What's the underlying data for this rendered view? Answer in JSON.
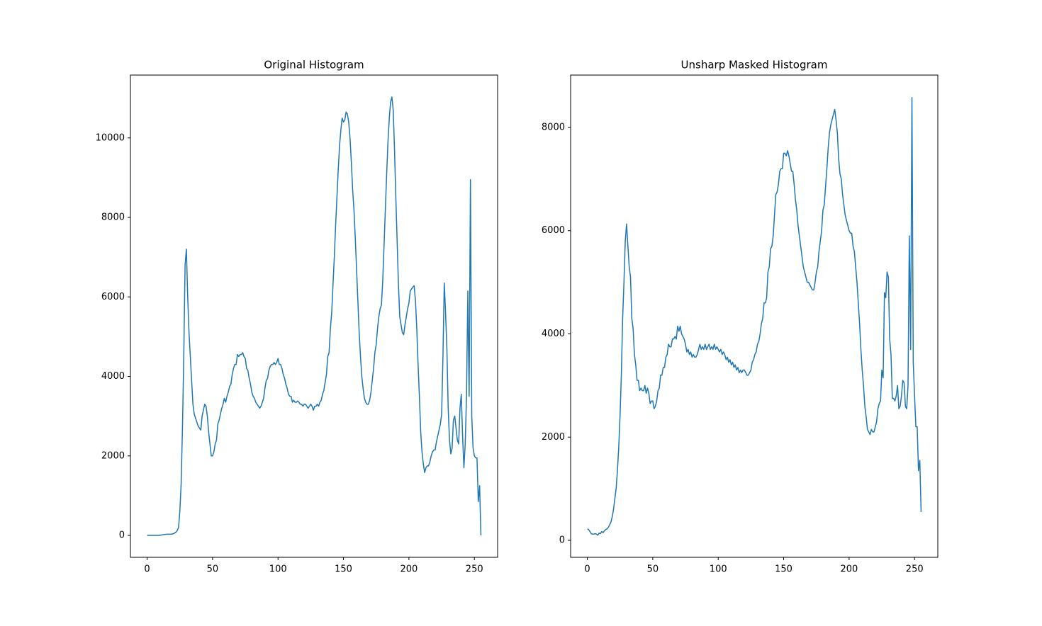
{
  "chart_data": [
    {
      "type": "line",
      "title": "Original Histogram",
      "color": "#1f77b4",
      "xlim": [
        -12.75,
        267.75
      ],
      "ylim": [
        -551.5,
        11581.5
      ],
      "xticks": [
        0,
        50,
        100,
        150,
        200,
        250
      ],
      "yticks": [
        0,
        2000,
        4000,
        6000,
        8000,
        10000
      ],
      "x": [
        0,
        1,
        2,
        3,
        4,
        5,
        6,
        7,
        8,
        9,
        10,
        11,
        12,
        13,
        14,
        15,
        16,
        17,
        18,
        19,
        20,
        21,
        22,
        23,
        24,
        25,
        26,
        27,
        28,
        29,
        30,
        31,
        32,
        33,
        34,
        35,
        36,
        37,
        38,
        39,
        40,
        41,
        42,
        43,
        44,
        45,
        46,
        47,
        48,
        49,
        50,
        51,
        52,
        53,
        54,
        55,
        56,
        57,
        58,
        59,
        60,
        61,
        62,
        63,
        64,
        65,
        66,
        67,
        68,
        69,
        70,
        71,
        72,
        73,
        74,
        75,
        76,
        77,
        78,
        79,
        80,
        81,
        82,
        83,
        84,
        85,
        86,
        87,
        88,
        89,
        90,
        91,
        92,
        93,
        94,
        95,
        96,
        97,
        98,
        99,
        100,
        101,
        102,
        103,
        104,
        105,
        106,
        107,
        108,
        109,
        110,
        111,
        112,
        113,
        114,
        115,
        116,
        117,
        118,
        119,
        120,
        121,
        122,
        123,
        124,
        125,
        126,
        127,
        128,
        129,
        130,
        131,
        132,
        133,
        134,
        135,
        136,
        137,
        138,
        139,
        140,
        141,
        142,
        143,
        144,
        145,
        146,
        147,
        148,
        149,
        150,
        151,
        152,
        153,
        154,
        155,
        156,
        157,
        158,
        159,
        160,
        161,
        162,
        163,
        164,
        165,
        166,
        167,
        168,
        169,
        170,
        171,
        172,
        173,
        174,
        175,
        176,
        177,
        178,
        179,
        180,
        181,
        182,
        183,
        184,
        185,
        186,
        187,
        188,
        189,
        190,
        191,
        192,
        193,
        194,
        195,
        196,
        197,
        198,
        199,
        200,
        201,
        202,
        203,
        204,
        205,
        206,
        207,
        208,
        209,
        210,
        211,
        212,
        213,
        214,
        215,
        216,
        217,
        218,
        219,
        220,
        221,
        222,
        223,
        224,
        225,
        226,
        227,
        228,
        229,
        230,
        231,
        232,
        233,
        234,
        235,
        236,
        237,
        238,
        239,
        240,
        241,
        242,
        243,
        244,
        245,
        246,
        247,
        248,
        249,
        250,
        251,
        252,
        253,
        254,
        255
      ],
      "values": [
        0,
        0,
        0,
        0,
        0,
        0,
        0,
        0,
        0,
        0,
        5,
        10,
        15,
        20,
        25,
        30,
        30,
        30,
        30,
        35,
        40,
        60,
        80,
        120,
        200,
        600,
        1300,
        2700,
        4500,
        6800,
        7200,
        6000,
        5100,
        4500,
        3900,
        3300,
        3050,
        2950,
        2850,
        2750,
        2700,
        2650,
        3000,
        3150,
        3300,
        3250,
        3000,
        2600,
        2300,
        2000,
        2000,
        2100,
        2300,
        2400,
        2800,
        2900,
        3050,
        3200,
        3300,
        3450,
        3350,
        3500,
        3600,
        3750,
        3800,
        4050,
        4200,
        4300,
        4300,
        4550,
        4500,
        4550,
        4550,
        4600,
        4500,
        4450,
        4200,
        4150,
        3950,
        3800,
        3600,
        3500,
        3450,
        3350,
        3300,
        3250,
        3200,
        3250,
        3350,
        3450,
        3700,
        3900,
        3950,
        4150,
        4250,
        4300,
        4300,
        4350,
        4300,
        4350,
        4450,
        4300,
        4300,
        4200,
        4050,
        3950,
        3800,
        3700,
        3550,
        3500,
        3500,
        3350,
        3400,
        3350,
        3350,
        3380,
        3350,
        3300,
        3300,
        3250,
        3300,
        3300,
        3250,
        3200,
        3250,
        3300,
        3250,
        3150,
        3250,
        3250,
        3300,
        3250,
        3350,
        3400,
        3550,
        3650,
        3850,
        4050,
        4500,
        4600,
        5200,
        5600,
        6300,
        7000,
        7800,
        8500,
        9200,
        9800,
        10200,
        10500,
        10400,
        10450,
        10650,
        10600,
        10400,
        10000,
        9400,
        8700,
        8200,
        7500,
        6700,
        5900,
        5100,
        4500,
        4000,
        3700,
        3450,
        3350,
        3300,
        3300,
        3400,
        3600,
        3900,
        4200,
        4600,
        4800,
        5200,
        5500,
        5700,
        5800,
        6400,
        7300,
        8200,
        9100,
        9900,
        10500,
        10900,
        11030,
        10700,
        9700,
        8500,
        7400,
        6300,
        5500,
        5300,
        5100,
        5050,
        5300,
        5500,
        5700,
        5850,
        6150,
        6200,
        6250,
        6280,
        5900,
        5200,
        4300,
        3500,
        2600,
        2100,
        1800,
        1580,
        1700,
        1750,
        1750,
        1850,
        2000,
        2100,
        2150,
        2150,
        2350,
        2500,
        2650,
        2800,
        3050,
        4500,
        6350,
        5600,
        4700,
        3200,
        2400,
        2050,
        2200,
        2900,
        3000,
        2700,
        2400,
        2300,
        3200,
        3550,
        2500,
        1700,
        2300,
        3500,
        6150,
        3500,
        8950,
        3000,
        2200,
        2000,
        1950,
        1950,
        850,
        1250,
        0
      ]
    },
    {
      "type": "line",
      "title": "Unsharp Masked Histogram",
      "color": "#1f77b4",
      "xlim": [
        -12.75,
        267.75
      ],
      "ylim": [
        -329,
        9015
      ],
      "xticks": [
        0,
        50,
        100,
        150,
        200,
        250
      ],
      "yticks": [
        0,
        2000,
        4000,
        6000,
        8000
      ],
      "x": [
        0,
        1,
        2,
        3,
        4,
        5,
        6,
        7,
        8,
        9,
        10,
        11,
        12,
        13,
        14,
        15,
        16,
        17,
        18,
        19,
        20,
        21,
        22,
        23,
        24,
        25,
        26,
        27,
        28,
        29,
        30,
        31,
        32,
        33,
        34,
        35,
        36,
        37,
        38,
        39,
        40,
        41,
        42,
        43,
        44,
        45,
        46,
        47,
        48,
        49,
        50,
        51,
        52,
        53,
        54,
        55,
        56,
        57,
        58,
        59,
        60,
        61,
        62,
        63,
        64,
        65,
        66,
        67,
        68,
        69,
        70,
        71,
        72,
        73,
        74,
        75,
        76,
        77,
        78,
        79,
        80,
        81,
        82,
        83,
        84,
        85,
        86,
        87,
        88,
        89,
        90,
        91,
        92,
        93,
        94,
        95,
        96,
        97,
        98,
        99,
        100,
        101,
        102,
        103,
        104,
        105,
        106,
        107,
        108,
        109,
        110,
        111,
        112,
        113,
        114,
        115,
        116,
        117,
        118,
        119,
        120,
        121,
        122,
        123,
        124,
        125,
        126,
        127,
        128,
        129,
        130,
        131,
        132,
        133,
        134,
        135,
        136,
        137,
        138,
        139,
        140,
        141,
        142,
        143,
        144,
        145,
        146,
        147,
        148,
        149,
        150,
        151,
        152,
        153,
        154,
        155,
        156,
        157,
        158,
        159,
        160,
        161,
        162,
        163,
        164,
        165,
        166,
        167,
        168,
        169,
        170,
        171,
        172,
        173,
        174,
        175,
        176,
        177,
        178,
        179,
        180,
        181,
        182,
        183,
        184,
        185,
        186,
        187,
        188,
        189,
        190,
        191,
        192,
        193,
        194,
        195,
        196,
        197,
        198,
        199,
        200,
        201,
        202,
        203,
        204,
        205,
        206,
        207,
        208,
        209,
        210,
        211,
        212,
        213,
        214,
        215,
        216,
        217,
        218,
        219,
        220,
        221,
        222,
        223,
        224,
        225,
        226,
        227,
        228,
        229,
        230,
        231,
        232,
        233,
        234,
        235,
        236,
        237,
        238,
        239,
        240,
        241,
        242,
        243,
        244,
        245,
        246,
        247,
        248,
        249,
        250,
        251,
        252,
        253,
        254,
        255
      ],
      "values": [
        220,
        210,
        170,
        130,
        120,
        120,
        130,
        120,
        100,
        140,
        130,
        170,
        150,
        180,
        210,
        220,
        250,
        300,
        350,
        450,
        600,
        800,
        1000,
        1350,
        1800,
        2400,
        3200,
        4300,
        5000,
        5800,
        6130,
        5700,
        5300,
        5100,
        4300,
        4100,
        3600,
        3400,
        3100,
        3100,
        2900,
        2950,
        2900,
        2900,
        3000,
        2850,
        2950,
        2850,
        2650,
        2700,
        2700,
        2550,
        2600,
        2700,
        2900,
        2950,
        3200,
        3200,
        3350,
        3350,
        3550,
        3600,
        3800,
        3750,
        3750,
        3900,
        3900,
        3950,
        3900,
        4150,
        4050,
        4150,
        4000,
        3950,
        3900,
        3800,
        3650,
        3700,
        3600,
        3650,
        3550,
        3600,
        3550,
        3550,
        3600,
        3700,
        3800,
        3700,
        3750,
        3700,
        3800,
        3700,
        3750,
        3800,
        3700,
        3750,
        3700,
        3800,
        3700,
        3750,
        3700,
        3650,
        3700,
        3600,
        3650,
        3600,
        3500,
        3550,
        3450,
        3500,
        3400,
        3450,
        3350,
        3400,
        3300,
        3350,
        3250,
        3300,
        3250,
        3300,
        3300,
        3250,
        3200,
        3200,
        3250,
        3300,
        3450,
        3500,
        3600,
        3650,
        3800,
        3850,
        4000,
        4200,
        4300,
        4600,
        4600,
        4700,
        5200,
        5300,
        5650,
        5700,
        5900,
        6300,
        6700,
        6750,
        6900,
        7150,
        7200,
        7200,
        7500,
        7500,
        7450,
        7550,
        7450,
        7300,
        7150,
        7150,
        6900,
        6600,
        6400,
        6100,
        5900,
        5700,
        5500,
        5300,
        5200,
        5100,
        5000,
        5000,
        4950,
        4900,
        4850,
        4850,
        5000,
        5200,
        5300,
        5600,
        5800,
        6000,
        6400,
        6500,
        6850,
        7200,
        7600,
        7900,
        8050,
        8150,
        8250,
        8350,
        8150,
        7900,
        7400,
        7100,
        7000,
        6700,
        6500,
        6300,
        6200,
        6100,
        6000,
        5950,
        5950,
        5700,
        5600,
        5300,
        5000,
        4600,
        4200,
        3700,
        3300,
        3000,
        2600,
        2400,
        2150,
        2100,
        2050,
        2150,
        2100,
        2100,
        2200,
        2300,
        2550,
        2650,
        2700,
        3300,
        3150,
        4800,
        4700,
        5200,
        5100,
        3900,
        3600,
        2750,
        2750,
        2700,
        2800,
        3000,
        2550,
        2600,
        2800,
        3100,
        3050,
        2600,
        2550,
        3000,
        5900,
        3700,
        8580,
        3450,
        2800,
        2200,
        2200,
        1350,
        1550,
        550
      ]
    }
  ]
}
